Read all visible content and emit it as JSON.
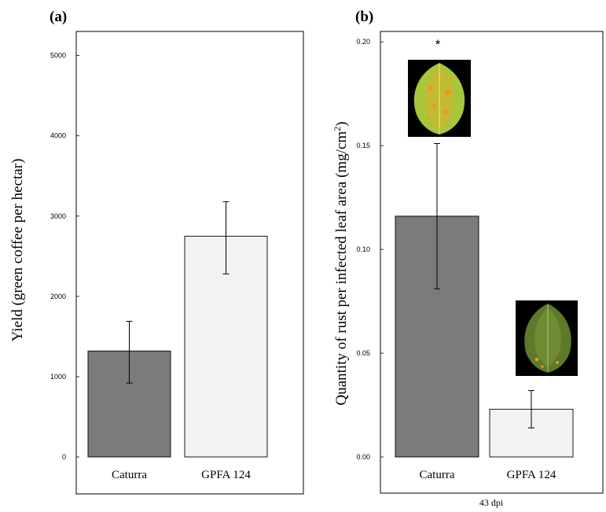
{
  "chart_data": [
    {
      "type": "bar",
      "panel_label": "(a)",
      "ylabel": "Yield (green coffee per hectar)",
      "categories": [
        "Caturra",
        "GPFA 124"
      ],
      "values": [
        1320,
        2750
      ],
      "error_low": [
        920,
        2280
      ],
      "error_high": [
        1690,
        3180
      ],
      "colors": [
        "#7b7b7b",
        "#f2f2f2"
      ],
      "ylim": [
        0,
        5300
      ],
      "yticks": [
        0,
        1000,
        2000,
        3000,
        4000,
        5000
      ],
      "ytick_labels": [
        "0",
        "1000",
        "2000",
        "3000",
        "4000",
        "5000"
      ]
    },
    {
      "type": "bar",
      "panel_label": "(b)",
      "ylabel_main": "Quantity of rust per infected leaf area (mg/cm",
      "ylabel_sup": "2",
      "ylabel_end": ")",
      "xlabel": "43 dpi",
      "categories": [
        "Caturra",
        "GPFA 124"
      ],
      "values": [
        0.116,
        0.023
      ],
      "error_low": [
        0.081,
        0.014
      ],
      "error_high": [
        0.151,
        0.032
      ],
      "colors": [
        "#7b7b7b",
        "#f2f2f2"
      ],
      "ylim": [
        0,
        0.205
      ],
      "yticks": [
        0,
        0.05,
        0.1,
        0.15,
        0.2
      ],
      "ytick_labels": [
        "0.00",
        "0.05",
        "0.10",
        "0.15",
        "0.20"
      ],
      "annotation": "*"
    }
  ]
}
